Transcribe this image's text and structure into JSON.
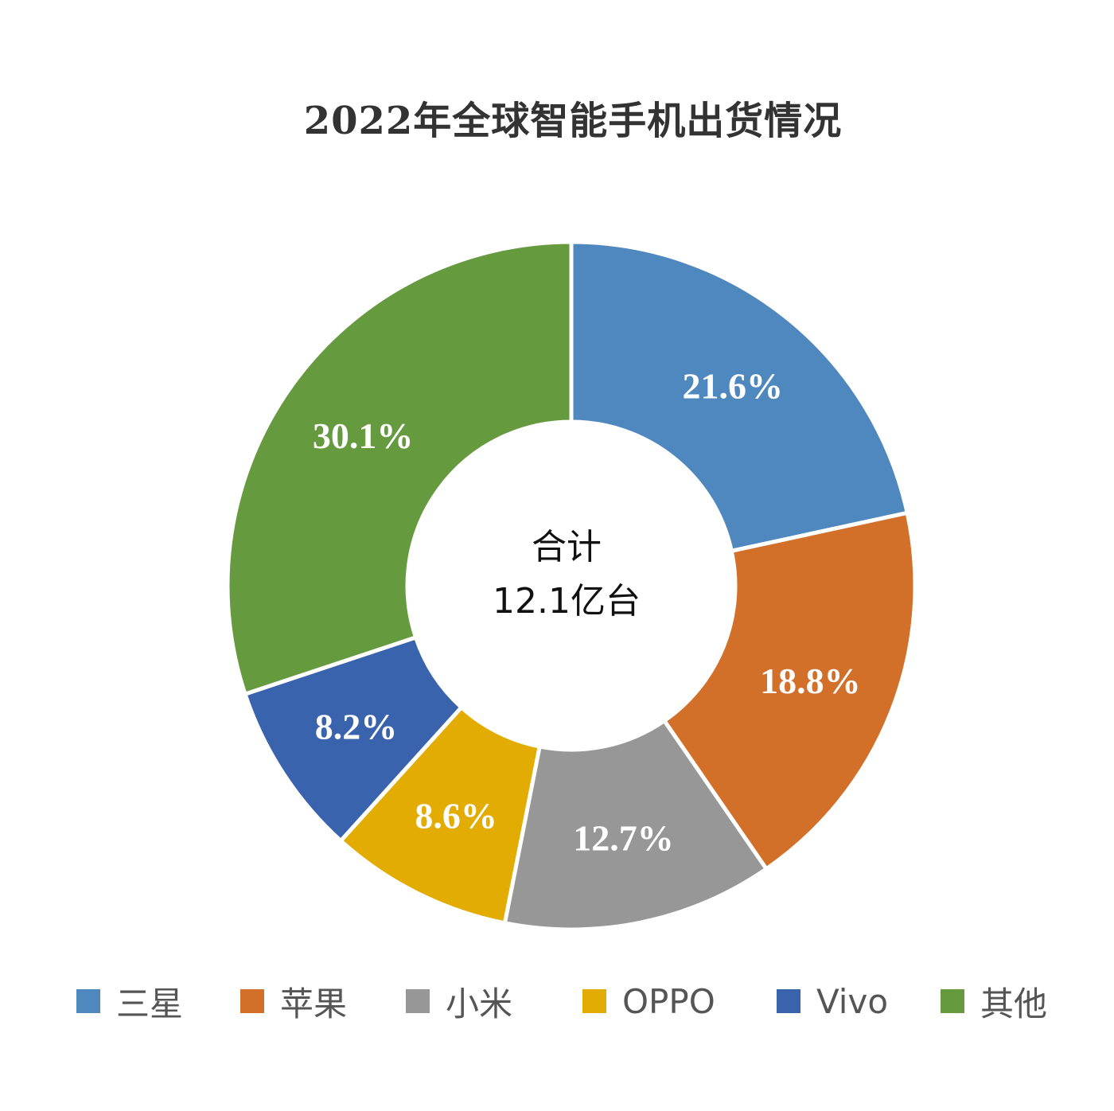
{
  "chart_data": {
    "type": "pie",
    "title": "2022年全球智能手机出货情况",
    "center_label": {
      "line1": "合计",
      "line2": "12.1亿台"
    },
    "categories": [
      "三星",
      "苹果",
      "小米",
      "OPPO",
      "Vivo",
      "其他"
    ],
    "values": [
      21.6,
      18.8,
      12.7,
      8.6,
      8.2,
      30.1
    ],
    "value_labels": [
      "21.6%",
      "18.8%",
      "12.7%",
      "8.6%",
      "8.2%",
      "30.1%"
    ],
    "unit": "%",
    "colors": [
      "#4E88BE",
      "#D2702A",
      "#979797",
      "#E2AC03",
      "#3A63AE",
      "#659A3E"
    ],
    "hole": "donut",
    "legend_position": "bottom"
  }
}
